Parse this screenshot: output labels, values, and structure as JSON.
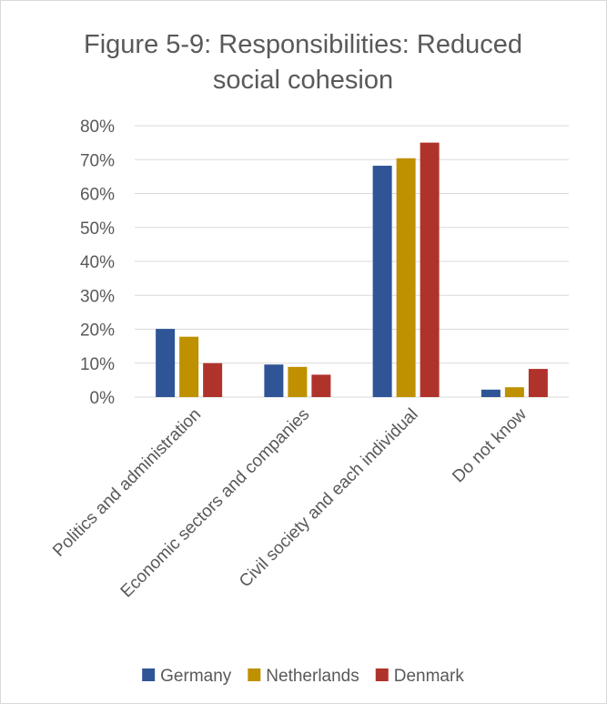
{
  "chart_data": {
    "type": "bar",
    "title_lines": [
      "Figure 5-9: Responsibilities: Reduced",
      "social cohesion"
    ],
    "categories": [
      "Politics and administration",
      "Economic sectors and companies",
      "Civil society and each individual",
      "Do not know"
    ],
    "series": [
      {
        "name": "Germany",
        "color": "#2f5597",
        "values": [
          20.1,
          9.6,
          68.2,
          2.2
        ]
      },
      {
        "name": "Netherlands",
        "color": "#bf9000",
        "values": [
          17.8,
          8.9,
          70.4,
          2.9
        ]
      },
      {
        "name": "Denmark",
        "color": "#b0332b",
        "values": [
          10.0,
          6.6,
          75.0,
          8.3
        ]
      }
    ],
    "ylim": [
      0,
      80
    ],
    "y_ticks": [
      0,
      10,
      20,
      30,
      40,
      50,
      60,
      70,
      80
    ],
    "y_tick_labels": [
      "0%",
      "10%",
      "20%",
      "30%",
      "40%",
      "50%",
      "60%",
      "70%",
      "80%"
    ],
    "grid": true,
    "legend_position": "bottom"
  }
}
